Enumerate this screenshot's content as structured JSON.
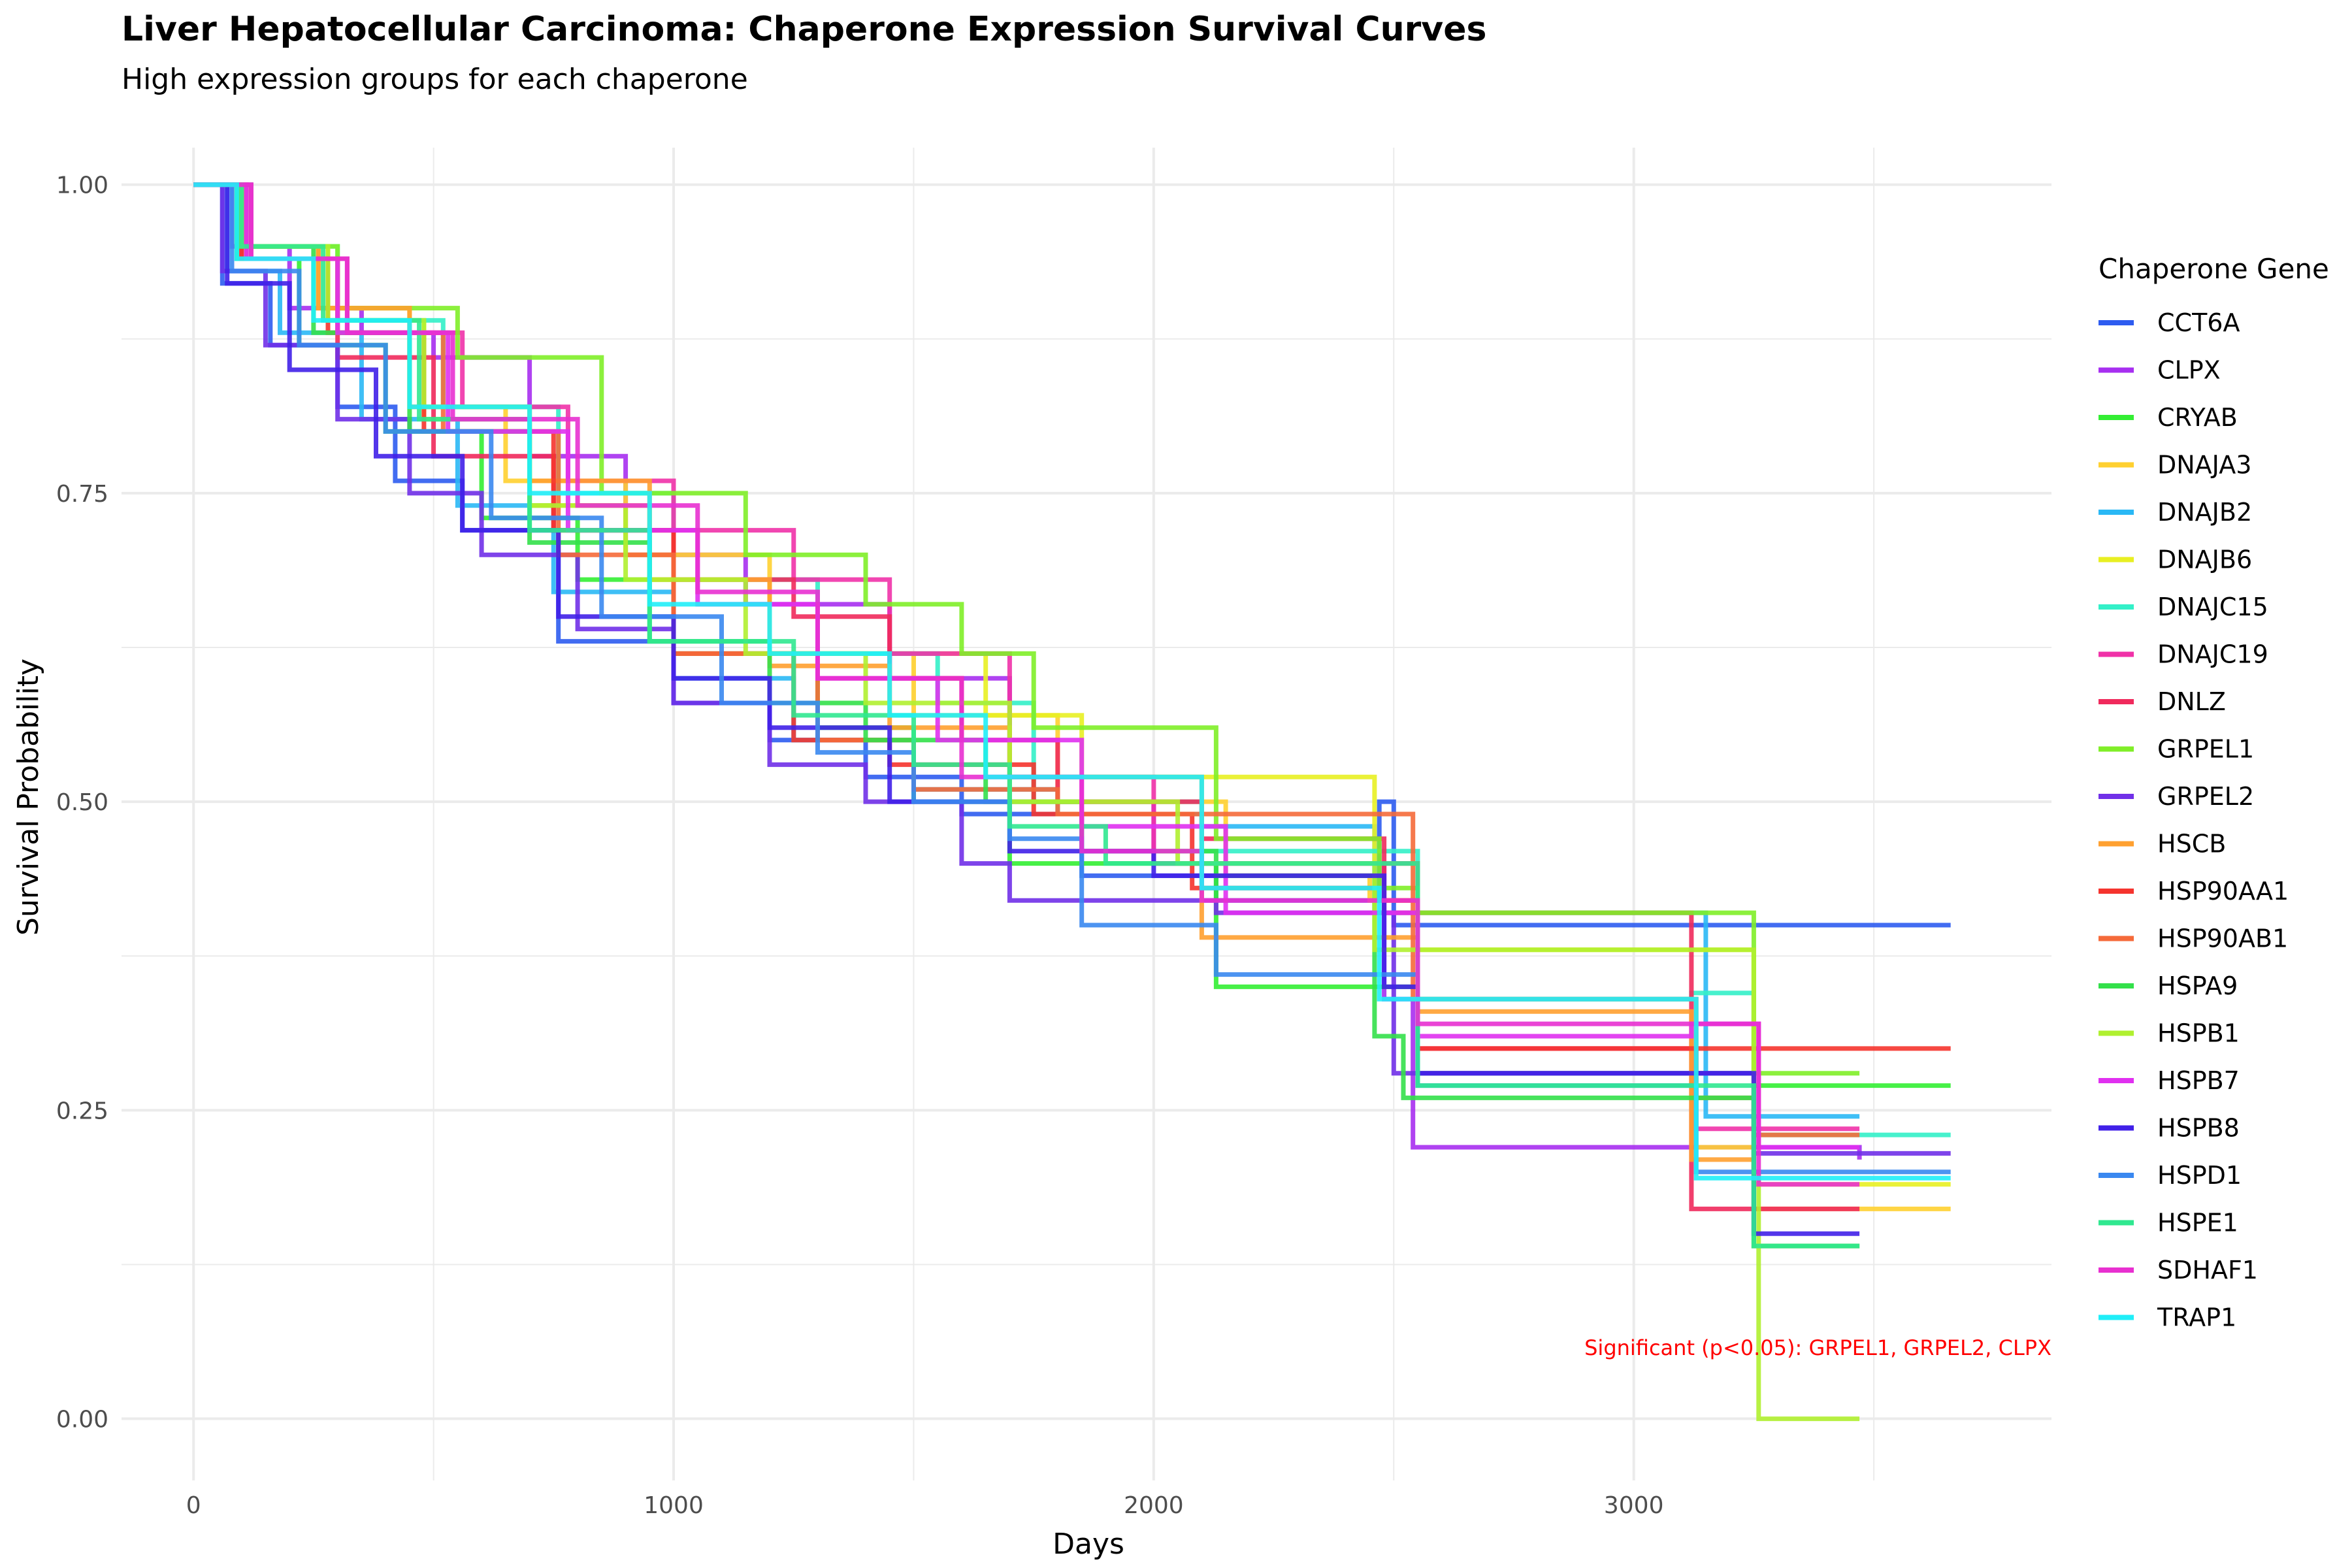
{
  "chart_data": {
    "type": "line",
    "subtype": "kaplan-meier-step",
    "title": "Liver Hepatocellular Carcinoma: Chaperone Expression Survival Curves",
    "subtitle": "High expression groups for each chaperone",
    "xlabel": "Days",
    "ylabel": "Survival Probability",
    "xlim": [
      -150,
      3870
    ],
    "ylim": [
      -0.05,
      1.03
    ],
    "xticks": [
      0,
      1000,
      2000,
      3000
    ],
    "xtick_labels": [
      "0",
      "1000",
      "2000",
      "3000"
    ],
    "yticks": [
      0,
      0.25,
      0.5,
      0.75,
      1.0
    ],
    "ytick_labels": [
      "0.00",
      "0.25",
      "0.50",
      "0.75",
      "1.00"
    ],
    "grid": true,
    "legend_title": "Chaperone Gene",
    "legend_position": "right",
    "annotation": {
      "text": "Significant (p<0.05): GRPEL1, GRPEL2, CLPX",
      "x": 3860,
      "y": 0.055,
      "color": "#ff0000"
    },
    "series": [
      {
        "name": "CCT6A",
        "color": "#2e5cf0",
        "x": [
          0,
          60,
          160,
          300,
          420,
          560,
          760,
          1000,
          1200,
          1400,
          1600,
          1850,
          2130,
          2470,
          2500,
          3660
        ],
        "y": [
          1.0,
          0.92,
          0.87,
          0.82,
          0.76,
          0.72,
          0.63,
          0.58,
          0.55,
          0.52,
          0.49,
          0.44,
          0.42,
          0.5,
          0.4,
          0.4
        ]
      },
      {
        "name": "CLPX",
        "color": "#a72ff0",
        "x": [
          0,
          80,
          200,
          350,
          500,
          700,
          900,
          1150,
          1450,
          1700,
          2000,
          2480,
          2540,
          3470
        ],
        "y": [
          1.0,
          0.95,
          0.9,
          0.88,
          0.86,
          0.78,
          0.7,
          0.66,
          0.6,
          0.5,
          0.45,
          0.34,
          0.22,
          0.21
        ]
      },
      {
        "name": "CRYAB",
        "color": "#33ee33",
        "x": [
          0,
          90,
          220,
          400,
          600,
          800,
          1000,
          1300,
          1500,
          1700,
          2130,
          2550,
          3250,
          3660
        ],
        "y": [
          1.0,
          0.94,
          0.87,
          0.8,
          0.73,
          0.68,
          0.62,
          0.56,
          0.5,
          0.45,
          0.35,
          0.28,
          0.27,
          0.27
        ]
      },
      {
        "name": "DNAJA3",
        "color": "#ffd030",
        "x": [
          0,
          100,
          260,
          450,
          650,
          900,
          1200,
          1500,
          1800,
          2150,
          2450,
          2550,
          3130,
          3250,
          3660
        ],
        "y": [
          1.0,
          0.95,
          0.9,
          0.82,
          0.76,
          0.7,
          0.62,
          0.57,
          0.5,
          0.44,
          0.42,
          0.3,
          0.22,
          0.17,
          0.17
        ]
      },
      {
        "name": "DNAJB2",
        "color": "#2ab8f5",
        "x": [
          0,
          70,
          180,
          350,
          550,
          750,
          1000,
          1250,
          1500,
          1800,
          2100,
          2460,
          2550,
          3150,
          3470
        ],
        "y": [
          1.0,
          0.93,
          0.88,
          0.81,
          0.74,
          0.67,
          0.6,
          0.55,
          0.51,
          0.49,
          0.48,
          0.41,
          0.41,
          0.245,
          0.245
        ]
      },
      {
        "name": "DNAJB6",
        "color": "#e8ef22",
        "x": [
          0,
          110,
          280,
          480,
          700,
          950,
          1200,
          1650,
          1850,
          2460,
          2550,
          3250,
          3660
        ],
        "y": [
          1.0,
          0.95,
          0.89,
          0.81,
          0.74,
          0.68,
          0.62,
          0.57,
          0.52,
          0.45,
          0.38,
          0.19,
          0.19
        ]
      },
      {
        "name": "DNAJC15",
        "color": "#33f0c8",
        "x": [
          0,
          120,
          300,
          520,
          760,
          1000,
          1300,
          1550,
          1750,
          2100,
          2550,
          3120,
          3250,
          3660
        ],
        "y": [
          1.0,
          0.95,
          0.89,
          0.82,
          0.75,
          0.68,
          0.62,
          0.58,
          0.5,
          0.46,
          0.34,
          0.345,
          0.23,
          0.23
        ]
      },
      {
        "name": "DNAJC19",
        "color": "#f032a8",
        "x": [
          0,
          120,
          320,
          560,
          780,
          1000,
          1250,
          1450,
          1700,
          2000,
          2550,
          3130,
          3470
        ],
        "y": [
          1.0,
          0.94,
          0.88,
          0.82,
          0.76,
          0.72,
          0.68,
          0.62,
          0.52,
          0.45,
          0.3,
          0.235,
          0.235
        ]
      },
      {
        "name": "DNLZ",
        "color": "#f02a5c",
        "x": [
          0,
          100,
          300,
          500,
          750,
          1000,
          1250,
          1450,
          1600,
          1800,
          2100,
          2480,
          3120,
          3250,
          3470
        ],
        "y": [
          1.0,
          0.94,
          0.86,
          0.78,
          0.72,
          0.68,
          0.65,
          0.6,
          0.55,
          0.5,
          0.47,
          0.41,
          0.17,
          0.17,
          0.17
        ]
      },
      {
        "name": "GRPEL1",
        "color": "#80ee28",
        "x": [
          0,
          100,
          300,
          550,
          850,
          1150,
          1400,
          1600,
          1750,
          2130,
          2470,
          2550,
          3250,
          3470
        ],
        "y": [
          1.0,
          0.95,
          0.9,
          0.86,
          0.75,
          0.7,
          0.66,
          0.62,
          0.56,
          0.47,
          0.43,
          0.41,
          0.28,
          0.28
        ]
      },
      {
        "name": "GRPEL2",
        "color": "#7030e8",
        "x": [
          0,
          60,
          150,
          300,
          450,
          600,
          800,
          1000,
          1200,
          1400,
          1600,
          1700,
          2130,
          2500,
          3250,
          3660
        ],
        "y": [
          1.0,
          0.93,
          0.87,
          0.81,
          0.75,
          0.7,
          0.64,
          0.58,
          0.53,
          0.5,
          0.45,
          0.42,
          0.41,
          0.28,
          0.215,
          0.215
        ]
      },
      {
        "name": "HSCB",
        "color": "#ffa030",
        "x": [
          0,
          90,
          260,
          450,
          700,
          950,
          1200,
          1450,
          1700,
          2100,
          2450,
          2550,
          3120,
          3250,
          3470
        ],
        "y": [
          1.0,
          0.95,
          0.9,
          0.82,
          0.76,
          0.68,
          0.61,
          0.56,
          0.52,
          0.39,
          0.39,
          0.33,
          0.21,
          0.14,
          0.14
        ]
      },
      {
        "name": "HSP90AA1",
        "color": "#f5342e",
        "x": [
          0,
          100,
          280,
          480,
          750,
          1000,
          1250,
          1450,
          1750,
          2080,
          2460,
          2550,
          3130,
          3660
        ],
        "y": [
          1.0,
          0.94,
          0.88,
          0.8,
          0.72,
          0.62,
          0.55,
          0.53,
          0.49,
          0.43,
          0.42,
          0.3,
          0.3,
          0.3
        ]
      },
      {
        "name": "HSP90AB1",
        "color": "#f56a3a",
        "x": [
          0,
          110,
          300,
          520,
          760,
          1000,
          1300,
          1500,
          1800,
          2480,
          2540,
          3130,
          3250,
          3470
        ],
        "y": [
          1.0,
          0.94,
          0.88,
          0.8,
          0.7,
          0.62,
          0.55,
          0.51,
          0.49,
          0.49,
          0.34,
          0.26,
          0.23,
          0.23
        ]
      },
      {
        "name": "HSPA9",
        "color": "#33e04a",
        "x": [
          0,
          90,
          250,
          450,
          700,
          950,
          1200,
          1400,
          1650,
          1850,
          2130,
          2460,
          2520,
          3250,
          3470
        ],
        "y": [
          1.0,
          0.95,
          0.88,
          0.8,
          0.71,
          0.63,
          0.58,
          0.55,
          0.5,
          0.46,
          0.44,
          0.31,
          0.26,
          0.14,
          0.14
        ]
      },
      {
        "name": "HSPB1",
        "color": "#b0f030",
        "x": [
          0,
          100,
          280,
          480,
          700,
          900,
          1150,
          1400,
          1700,
          2050,
          2460,
          3120,
          3250,
          3260,
          3470
        ],
        "y": [
          1.0,
          0.95,
          0.89,
          0.82,
          0.74,
          0.68,
          0.62,
          0.58,
          0.5,
          0.45,
          0.38,
          0.38,
          0.2,
          0.0,
          0.0
        ]
      },
      {
        "name": "HSPB7",
        "color": "#e030f0",
        "x": [
          0,
          110,
          300,
          530,
          780,
          1050,
          1300,
          1550,
          1850,
          2150,
          2550,
          3120,
          3260,
          3470
        ],
        "y": [
          1.0,
          0.94,
          0.88,
          0.8,
          0.72,
          0.66,
          0.6,
          0.55,
          0.48,
          0.41,
          0.31,
          0.32,
          0.22,
          0.22
        ]
      },
      {
        "name": "HSPB8",
        "color": "#4020e8",
        "x": [
          0,
          70,
          200,
          380,
          560,
          760,
          1000,
          1200,
          1450,
          1700,
          2000,
          2480,
          2550,
          3250,
          3470
        ],
        "y": [
          1.0,
          0.92,
          0.85,
          0.78,
          0.72,
          0.65,
          0.6,
          0.56,
          0.5,
          0.46,
          0.44,
          0.35,
          0.28,
          0.15,
          0.15
        ]
      },
      {
        "name": "HSPD1",
        "color": "#3a88f0",
        "x": [
          0,
          80,
          220,
          400,
          620,
          850,
          1100,
          1300,
          1500,
          1700,
          1850,
          2130,
          2460,
          2550,
          3130,
          3660
        ],
        "y": [
          1.0,
          0.93,
          0.87,
          0.8,
          0.73,
          0.65,
          0.58,
          0.54,
          0.5,
          0.47,
          0.4,
          0.36,
          0.36,
          0.27,
          0.2,
          0.2
        ]
      },
      {
        "name": "HSPE1",
        "color": "#30e890",
        "x": [
          0,
          100,
          270,
          470,
          700,
          950,
          1250,
          1500,
          1700,
          1900,
          2130,
          2550,
          3250,
          3470
        ],
        "y": [
          1.0,
          0.95,
          0.89,
          0.81,
          0.72,
          0.63,
          0.57,
          0.53,
          0.48,
          0.45,
          0.45,
          0.27,
          0.14,
          0.14
        ]
      },
      {
        "name": "SDHAF1",
        "color": "#e830d0",
        "x": [
          0,
          120,
          320,
          540,
          800,
          1050,
          1300,
          1600,
          1850,
          2100,
          2550,
          3130,
          3260,
          3470
        ],
        "y": [
          1.0,
          0.94,
          0.88,
          0.81,
          0.74,
          0.67,
          0.6,
          0.52,
          0.46,
          0.42,
          0.32,
          0.32,
          0.19,
          0.19
        ]
      },
      {
        "name": "TRAP1",
        "color": "#20eef8",
        "x": [
          0,
          90,
          250,
          450,
          700,
          950,
          1200,
          1450,
          1650,
          2100,
          2470,
          3120,
          3130,
          3660
        ],
        "y": [
          1.0,
          0.94,
          0.89,
          0.82,
          0.75,
          0.66,
          0.62,
          0.57,
          0.52,
          0.43,
          0.34,
          0.34,
          0.195,
          0.195
        ]
      }
    ]
  }
}
